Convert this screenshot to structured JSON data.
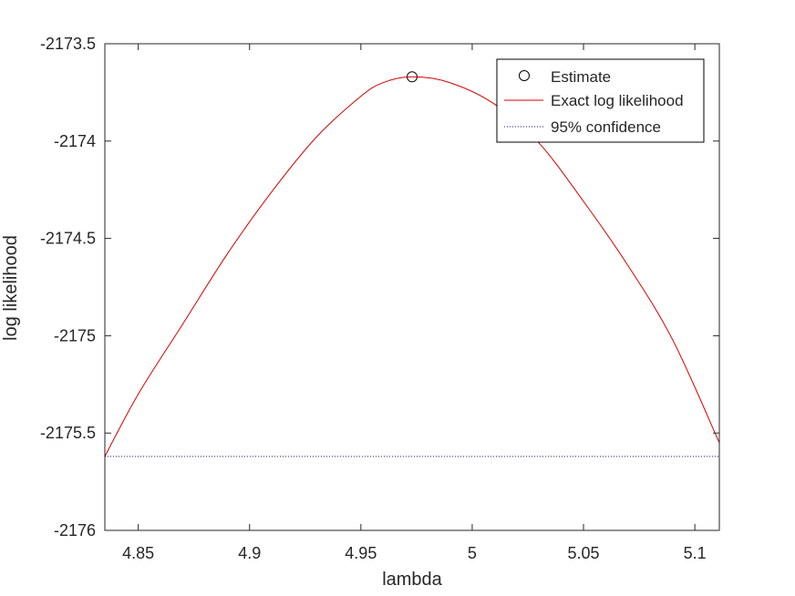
{
  "chart_data": {
    "type": "line",
    "title": "",
    "xlabel": "lambda",
    "ylabel": "log likelihood",
    "xlim": [
      4.835,
      5.111
    ],
    "ylim": [
      -2176,
      -2173.5
    ],
    "x_ticks": [
      4.85,
      4.9,
      4.95,
      5,
      5.05,
      5.1
    ],
    "x_tick_labels": [
      "4.85",
      "4.9",
      "4.95",
      "5",
      "5.05",
      "5.1"
    ],
    "y_ticks": [
      -2176,
      -2175.5,
      -2175,
      -2174.5,
      -2174,
      -2173.5
    ],
    "y_tick_labels": [
      "-2176",
      "-2175.5",
      "-2175",
      "-2174.5",
      "-2174",
      "-2173.5"
    ],
    "grid": false,
    "legend_position": "top-right",
    "series": [
      {
        "name": "Estimate",
        "kind": "marker",
        "color": "#000000",
        "x": [
          4.973
        ],
        "y": [
          -2173.67
        ]
      },
      {
        "name": "Exact log likelihood",
        "kind": "line",
        "color": "#d40000",
        "x": [
          4.835,
          4.85,
          4.87,
          4.89,
          4.91,
          4.93,
          4.95,
          4.96,
          4.973,
          4.99,
          5.01,
          5.03,
          5.05,
          5.07,
          5.09,
          5.111
        ],
        "y": [
          -2175.62,
          -2175.3,
          -2174.94,
          -2174.58,
          -2174.26,
          -2173.98,
          -2173.77,
          -2173.7,
          -2173.67,
          -2173.7,
          -2173.81,
          -2174.01,
          -2174.31,
          -2174.64,
          -2175.02,
          -2175.55
        ]
      },
      {
        "name": "95% confidence",
        "kind": "dotted-line",
        "color": "#1a1a80",
        "x": [
          4.835,
          5.111
        ],
        "y": [
          -2175.62,
          -2175.62
        ]
      }
    ]
  }
}
